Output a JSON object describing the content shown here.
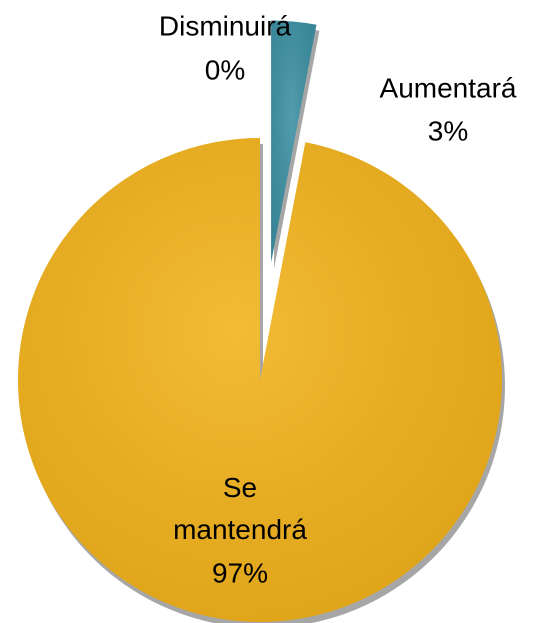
{
  "chart_data": {
    "type": "pie",
    "categories": [
      "Disminuirá",
      "Aumentará",
      "Se mantendrá"
    ],
    "values": [
      0,
      3,
      97
    ],
    "value_labels": [
      "0%",
      "3%",
      "97%"
    ],
    "colors": [
      null,
      "#3a8fa2",
      "#f2b21a"
    ]
  }
}
